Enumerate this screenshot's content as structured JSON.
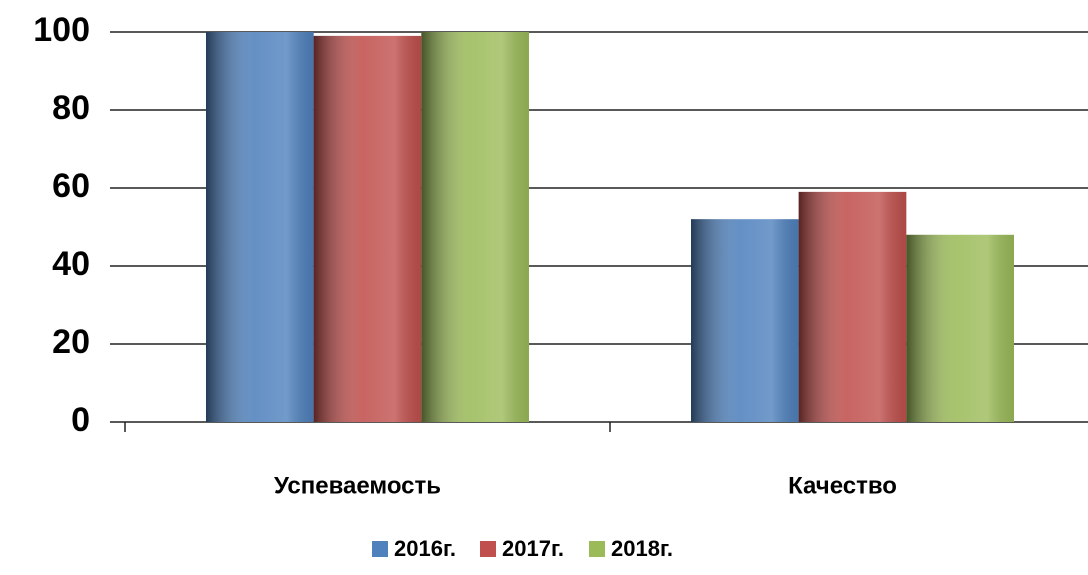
{
  "chart_data": {
    "type": "bar",
    "categories": [
      "Успеваемость",
      "Качество"
    ],
    "series": [
      {
        "name": "2016г.",
        "color": "#4f81bd",
        "values": [
          100,
          52
        ]
      },
      {
        "name": "2017г.",
        "color": "#c0504d",
        "values": [
          99,
          59
        ]
      },
      {
        "name": "2018г.",
        "color": "#9bbb59",
        "values": [
          100,
          48
        ]
      }
    ],
    "ylim": [
      0,
      100
    ],
    "yticks": [
      0,
      20,
      40,
      60,
      80,
      100
    ],
    "grid": true,
    "legend": "bottom"
  }
}
